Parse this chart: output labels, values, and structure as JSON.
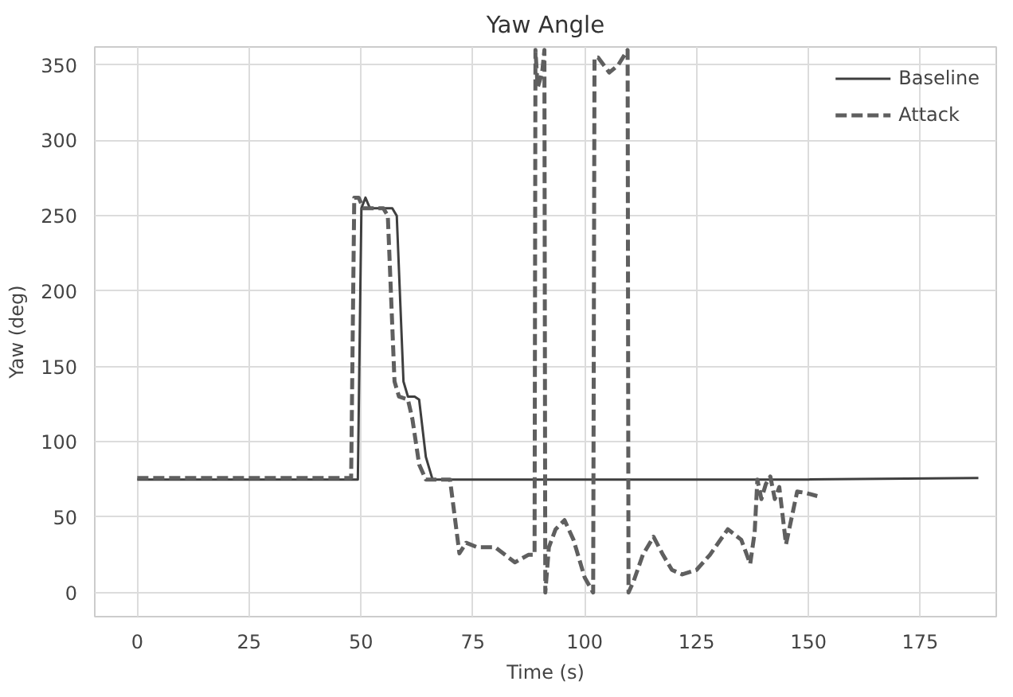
{
  "chart_data": {
    "type": "line",
    "title": "Yaw Angle",
    "xlabel": "Time (s)",
    "ylabel": "Yaw (deg)",
    "xlim": [
      -9.5,
      192
    ],
    "ylim": [
      -16,
      362
    ],
    "xticks": [
      0,
      25,
      50,
      75,
      100,
      125,
      150,
      175
    ],
    "yticks": [
      0,
      50,
      100,
      150,
      200,
      250,
      300,
      350
    ],
    "grid": true,
    "legend": "top right",
    "series": [
      {
        "name": "Baseline",
        "color": "#3f3f3f",
        "line_style": "solid",
        "x": [
          0,
          49.3,
          50.1,
          51,
          52,
          57,
          58,
          59.5,
          60.5,
          62,
          63,
          64.5,
          66,
          70,
          100,
          150,
          188
        ],
        "values": [
          75,
          75,
          255,
          262,
          255,
          255,
          250,
          140,
          130,
          130,
          128,
          90,
          75,
          75,
          75,
          75,
          76
        ]
      },
      {
        "name": "Attack",
        "color": "#5f5f5f",
        "line_style": "dashed",
        "x": [
          0,
          47.8,
          48.5,
          49.5,
          50.5,
          55,
          56,
          57.5,
          58.5,
          60.5,
          61.5,
          63,
          64.5,
          69.9,
          72,
          73.5,
          76,
          80,
          84.4,
          87.4,
          88.8,
          89,
          89.5,
          90.5,
          91,
          91.2,
          92,
          93.5,
          95.5,
          97.5,
          100,
          101.9,
          102.2,
          103,
          105.5,
          107.5,
          109.6,
          109.8,
          111,
          113,
          115.4,
          117.5,
          119.5,
          121.8,
          125,
          128,
          132,
          135,
          137,
          138,
          138.6,
          139.5,
          140.5,
          141.5,
          142.5,
          143.5,
          145,
          147.5,
          149.5,
          152
        ],
        "values": [
          76,
          76,
          262,
          262,
          255,
          255,
          250,
          140,
          130,
          128,
          115,
          85,
          75,
          75,
          26,
          33,
          30,
          30,
          20,
          25,
          25,
          360,
          335,
          345,
          360,
          0,
          30,
          42,
          48,
          35,
          10,
          0,
          355,
          355,
          345,
          350,
          360,
          0,
          8,
          25,
          37,
          25,
          15,
          12,
          15,
          25,
          42,
          35,
          19,
          40,
          75,
          62,
          72,
          77,
          62,
          70,
          32,
          67,
          66,
          64
        ]
      }
    ]
  }
}
